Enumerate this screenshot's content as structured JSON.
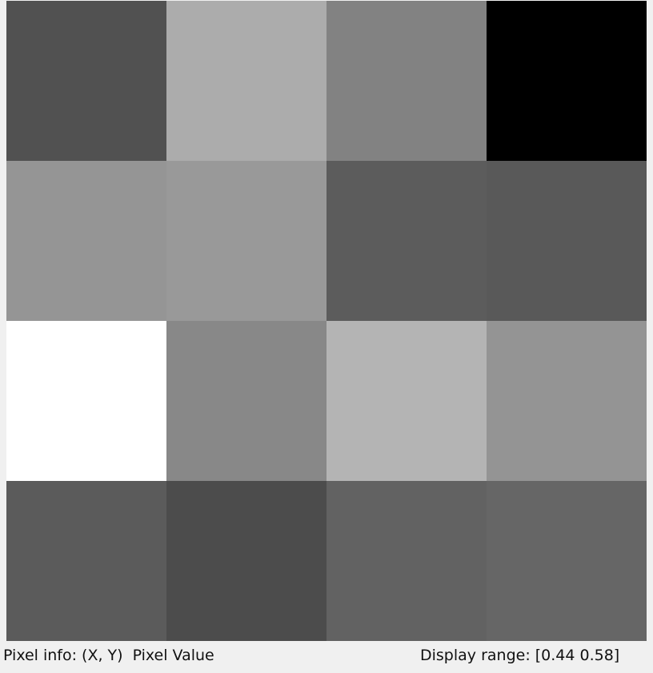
{
  "image": {
    "rows": 4,
    "cols": 4,
    "pixels": [
      [
        "#515151",
        "#acacac",
        "#828282",
        "#000000"
      ],
      [
        "#959595",
        "#999999",
        "#5c5c5c",
        "#595959"
      ],
      [
        "#ffffff",
        "#888888",
        "#b4b4b4",
        "#949494"
      ],
      [
        "#5b5b5b",
        "#4c4c4c",
        "#626262",
        "#666666"
      ]
    ]
  },
  "status": {
    "pixel_info_label": "Pixel info:",
    "coord_label": "(X, Y)",
    "value_label": "Pixel Value",
    "display_range_label": "Display range:",
    "display_range_value": "[0.44 0.58]"
  }
}
